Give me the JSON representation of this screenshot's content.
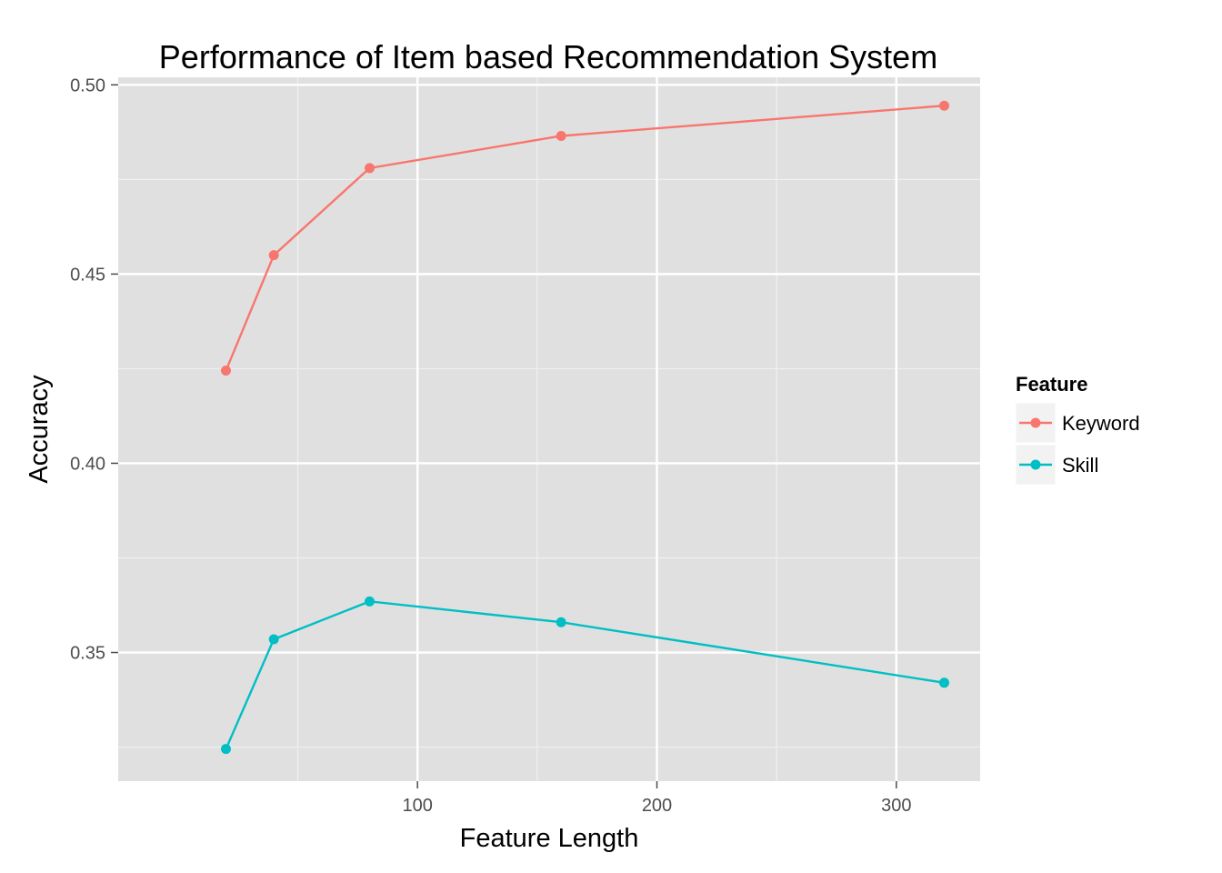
{
  "chart_data": {
    "type": "line",
    "title": "Performance of Item based Recommendation System",
    "xlabel": "Feature Length",
    "ylabel": "Accuracy",
    "x": [
      20,
      40,
      80,
      160,
      320
    ],
    "xlim": [
      -25,
      335
    ],
    "ylim": [
      0.316,
      0.502
    ],
    "x_ticks": [
      100,
      200,
      300
    ],
    "x_tick_labels": [
      "100",
      "200",
      "300"
    ],
    "x_minor_ticks": [
      50,
      150,
      250
    ],
    "y_ticks": [
      0.35,
      0.4,
      0.45,
      0.5
    ],
    "y_tick_labels": [
      "0.35",
      "0.40",
      "0.45",
      "0.50"
    ],
    "y_minor_ticks": [
      0.325,
      0.375,
      0.425,
      0.475
    ],
    "grid": true,
    "panel_background": "#e0e0e0",
    "legend": {
      "title": "Feature",
      "position": "right"
    },
    "series": [
      {
        "name": "Keyword",
        "color": "#f8766d",
        "values": [
          0.4245,
          0.455,
          0.478,
          0.4865,
          0.4945
        ]
      },
      {
        "name": "Skill",
        "color": "#00bfc4",
        "values": [
          0.3245,
          0.3535,
          0.3635,
          0.358,
          0.342
        ]
      }
    ]
  }
}
